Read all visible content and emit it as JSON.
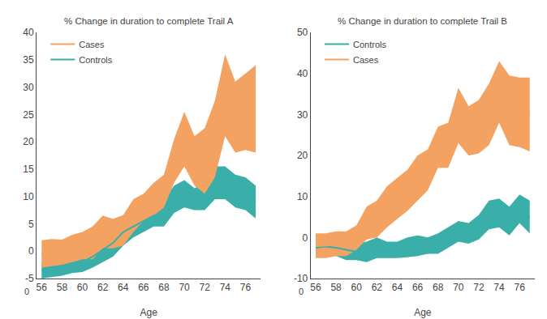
{
  "chart_data": [
    {
      "type": "line",
      "title": "% Change in duration to complete Trail A",
      "xlabel": "Age",
      "x": [
        56,
        57,
        58,
        59,
        60,
        61,
        62,
        63,
        64,
        65,
        66,
        67,
        68,
        69,
        70,
        71,
        72,
        73,
        74,
        75,
        76,
        77
      ],
      "series": [
        {
          "name": "Controls",
          "color": "#3AAFA9",
          "values": [
            -3.5,
            -3.2,
            -3.0,
            -2.5,
            -2.0,
            -1.0,
            0.2,
            1.5,
            3.5,
            4.5,
            5.5,
            6.5,
            7.0,
            9.5,
            10.5,
            9.5,
            10.0,
            12.5,
            12.5,
            11.0,
            10.5,
            9.0
          ],
          "lower": [
            -5.0,
            -4.8,
            -4.5,
            -4.0,
            -3.8,
            -3.0,
            -2.0,
            -1.0,
            1.0,
            2.5,
            3.5,
            4.5,
            4.5,
            7.0,
            8.0,
            7.5,
            7.5,
            9.5,
            9.5,
            8.0,
            7.5,
            6.0
          ],
          "upper": [
            -2.0,
            -1.8,
            -1.5,
            -1.0,
            -0.3,
            0.8,
            2.2,
            4.0,
            6.0,
            6.5,
            7.5,
            8.5,
            9.5,
            12.0,
            13.0,
            11.5,
            12.5,
            15.5,
            15.5,
            14.0,
            13.5,
            12.0
          ]
        },
        {
          "name": "Cases",
          "color": "#F4A261",
          "values": [
            -0.5,
            -0.3,
            -0.2,
            0.5,
            1.0,
            1.5,
            3.5,
            3.2,
            3.8,
            6.5,
            8.0,
            9.5,
            11.0,
            16.5,
            20.5,
            16.5,
            16.5,
            20.5,
            28.5,
            24.5,
            25.5,
            26.0
          ],
          "lower": [
            -3.0,
            -2.8,
            -2.5,
            -2.0,
            -1.5,
            -1.5,
            0.5,
            0.5,
            1.0,
            3.5,
            5.5,
            6.5,
            8.0,
            12.5,
            15.5,
            12.0,
            10.5,
            13.5,
            21.0,
            18.0,
            18.5,
            18.0
          ],
          "upper": [
            2.0,
            2.2,
            2.1,
            3.0,
            3.5,
            4.5,
            6.5,
            5.9,
            6.6,
            9.5,
            10.5,
            12.5,
            14.0,
            20.5,
            25.5,
            21.0,
            22.5,
            27.5,
            36.0,
            31.0,
            32.5,
            34.0
          ]
        }
      ],
      "xlim": [
        55.5,
        77.5
      ],
      "xticks": [
        56,
        58,
        60,
        62,
        64,
        66,
        68,
        70,
        72,
        74,
        76
      ],
      "ylim": [
        -5,
        40
      ],
      "yticks": [
        -5,
        0,
        5,
        10,
        15,
        20,
        25,
        30,
        35,
        40
      ],
      "grid": false,
      "legend": "upper left",
      "annotations": [
        {
          "text": "0",
          "y": -5
        }
      ]
    },
    {
      "type": "line",
      "title": "% Change in duration to complete Trail B",
      "xlabel": "Age",
      "x": [
        56,
        57,
        58,
        59,
        60,
        61,
        62,
        63,
        64,
        65,
        66,
        67,
        68,
        69,
        70,
        71,
        72,
        73,
        74,
        75,
        76,
        77
      ],
      "series": [
        {
          "name": "Controls",
          "color": "#3AAFA9",
          "values": [
            -2.5,
            -2.2,
            -2.5,
            -3.0,
            -3.5,
            -3.5,
            -2.5,
            -3.0,
            -3.0,
            -2.5,
            -2.0,
            -2.0,
            -1.5,
            0.0,
            1.5,
            1.0,
            2.5,
            5.5,
            6.0,
            4.0,
            7.0,
            5.0
          ],
          "lower": [
            -4.5,
            -4.3,
            -4.5,
            -5.5,
            -5.5,
            -6.0,
            -5.0,
            -5.0,
            -5.0,
            -4.8,
            -4.5,
            -4.0,
            -4.0,
            -2.5,
            -1.0,
            -1.5,
            -0.5,
            2.0,
            2.5,
            0.5,
            3.5,
            1.0
          ],
          "upper": [
            -0.5,
            -0.1,
            -0.5,
            -0.5,
            -1.5,
            -1.0,
            0.0,
            -1.0,
            -1.0,
            0.0,
            0.5,
            0.0,
            1.0,
            2.5,
            4.0,
            3.5,
            5.5,
            9.0,
            9.5,
            7.5,
            10.5,
            9.0
          ]
        },
        {
          "name": "Cases",
          "color": "#F4A261",
          "values": [
            -2.0,
            -2.0,
            -1.5,
            -1.5,
            0.0,
            3.5,
            4.5,
            7.5,
            9.5,
            11.5,
            14.5,
            16.5,
            22.0,
            22.5,
            29.5,
            26.0,
            27.0,
            30.0,
            35.5,
            31.0,
            30.5,
            30.0
          ],
          "lower": [
            -5.0,
            -5.0,
            -4.5,
            -4.5,
            -3.0,
            -0.5,
            0.0,
            2.5,
            4.5,
            6.5,
            9.0,
            11.5,
            17.0,
            17.0,
            23.0,
            20.0,
            20.5,
            22.5,
            28.0,
            22.5,
            22.0,
            21.0
          ],
          "upper": [
            1.0,
            1.0,
            1.5,
            1.5,
            3.0,
            7.5,
            9.0,
            12.5,
            14.5,
            16.5,
            20.0,
            21.5,
            27.0,
            28.0,
            36.5,
            32.0,
            33.5,
            37.5,
            43.0,
            39.5,
            39.0,
            39.0
          ]
        }
      ],
      "xlim": [
        55.5,
        77.5
      ],
      "xticks": [
        56,
        58,
        60,
        62,
        64,
        66,
        68,
        70,
        72,
        74,
        76
      ],
      "ylim": [
        -10,
        50
      ],
      "yticks": [
        -10,
        0,
        10,
        20,
        30,
        40,
        50
      ],
      "grid": false,
      "legend": "upper left",
      "annotations": [
        {
          "text": "0",
          "y": -10
        }
      ]
    }
  ]
}
